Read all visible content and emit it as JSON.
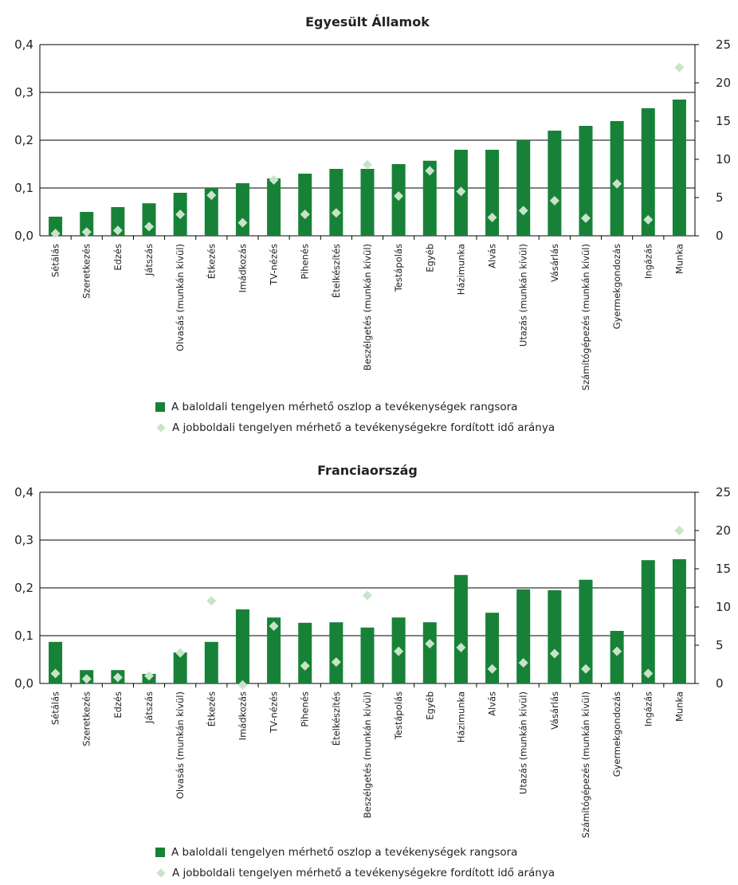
{
  "colors": {
    "bar": "#178237",
    "diamond": "#c9e3c9",
    "gridline": "#000000"
  },
  "legend": {
    "bar_label": "A baloldali tengelyen mérhető oszlop a tevékenységek rangsora",
    "diamond_label": "A jobboldali tengelyen mérhető a tevékenységekre fordított idő aránya"
  },
  "chart_data": [
    {
      "type": "bar",
      "title": "Egyesült Államok",
      "categories": [
        "Sétálás",
        "Szeretkezés",
        "Edzés",
        "Játszás",
        "Olvasás (munkán kívül)",
        "Étkezés",
        "Imádkozás",
        "TV-nézés",
        "Pihenés",
        "Ételkészítés",
        "Beszélgetés (munkán kívül)",
        "Testápolás",
        "Egyéb",
        "Házimunka",
        "Alvás",
        "Utazás (munkán kívül)",
        "Vásárlás",
        "Számítógépezés (munkán kívül)",
        "Gyermekgondozás",
        "Ingázás",
        "Munka"
      ],
      "series": [
        {
          "axis": "left",
          "kind": "bar",
          "values": [
            0.04,
            0.05,
            0.06,
            0.068,
            0.09,
            0.1,
            0.11,
            0.12,
            0.13,
            0.14,
            0.14,
            0.15,
            0.157,
            0.18,
            0.18,
            0.2,
            0.22,
            0.23,
            0.24,
            0.267,
            0.285
          ]
        },
        {
          "axis": "right",
          "kind": "diamond",
          "values": [
            0.3,
            0.5,
            0.7,
            1.2,
            2.8,
            5.3,
            1.7,
            7.3,
            2.8,
            3.0,
            9.3,
            5.2,
            8.5,
            5.8,
            2.4,
            3.3,
            4.6,
            2.3,
            6.8,
            2.1,
            22.0
          ]
        }
      ],
      "ylim_left": [
        0,
        0.4
      ],
      "ylim_right": [
        0,
        25
      ],
      "yticks_left": [
        "0,0",
        "0,1",
        "0,2",
        "0,3",
        "0,4"
      ],
      "yticks_right": [
        "0",
        "5",
        "10",
        "15",
        "20",
        "25"
      ],
      "grid": true
    },
    {
      "type": "bar",
      "title": "Franciaország",
      "categories": [
        "Sétálás",
        "Szeretkezés",
        "Edzés",
        "Játszás",
        "Olvasás (munkán kívül)",
        "Étkezés",
        "Imádkozás",
        "TV-nézés",
        "Pihenés",
        "Ételkészítés",
        "Beszélgetés (munkán kívül)",
        "Testápolás",
        "Egyéb",
        "Házimunka",
        "Alvás",
        "Utazás (munkán kívül)",
        "Vásárlás",
        "Számítógépezés (munkán kívül)",
        "Gyermekgondozás",
        "Ingázás",
        "Munka"
      ],
      "series": [
        {
          "axis": "left",
          "kind": "bar",
          "values": [
            0.087,
            0.028,
            0.028,
            0.02,
            0.065,
            0.087,
            0.155,
            0.138,
            0.127,
            0.128,
            0.117,
            0.138,
            0.128,
            0.227,
            0.148,
            0.197,
            0.195,
            0.217,
            0.11,
            0.258,
            0.26
          ]
        },
        {
          "axis": "right",
          "kind": "diamond",
          "values": [
            1.3,
            0.6,
            0.8,
            1.0,
            4.0,
            10.8,
            -0.2,
            7.5,
            2.3,
            2.8,
            11.5,
            4.2,
            5.2,
            4.7,
            1.9,
            2.7,
            3.9,
            1.9,
            4.2,
            1.3,
            20.0
          ]
        }
      ],
      "ylim_left": [
        0,
        0.4
      ],
      "ylim_right": [
        0,
        25
      ],
      "yticks_left": [
        "0,0",
        "0,1",
        "0,2",
        "0,3",
        "0,4"
      ],
      "yticks_right": [
        "0",
        "5",
        "10",
        "15",
        "20",
        "25"
      ],
      "grid": true
    }
  ]
}
